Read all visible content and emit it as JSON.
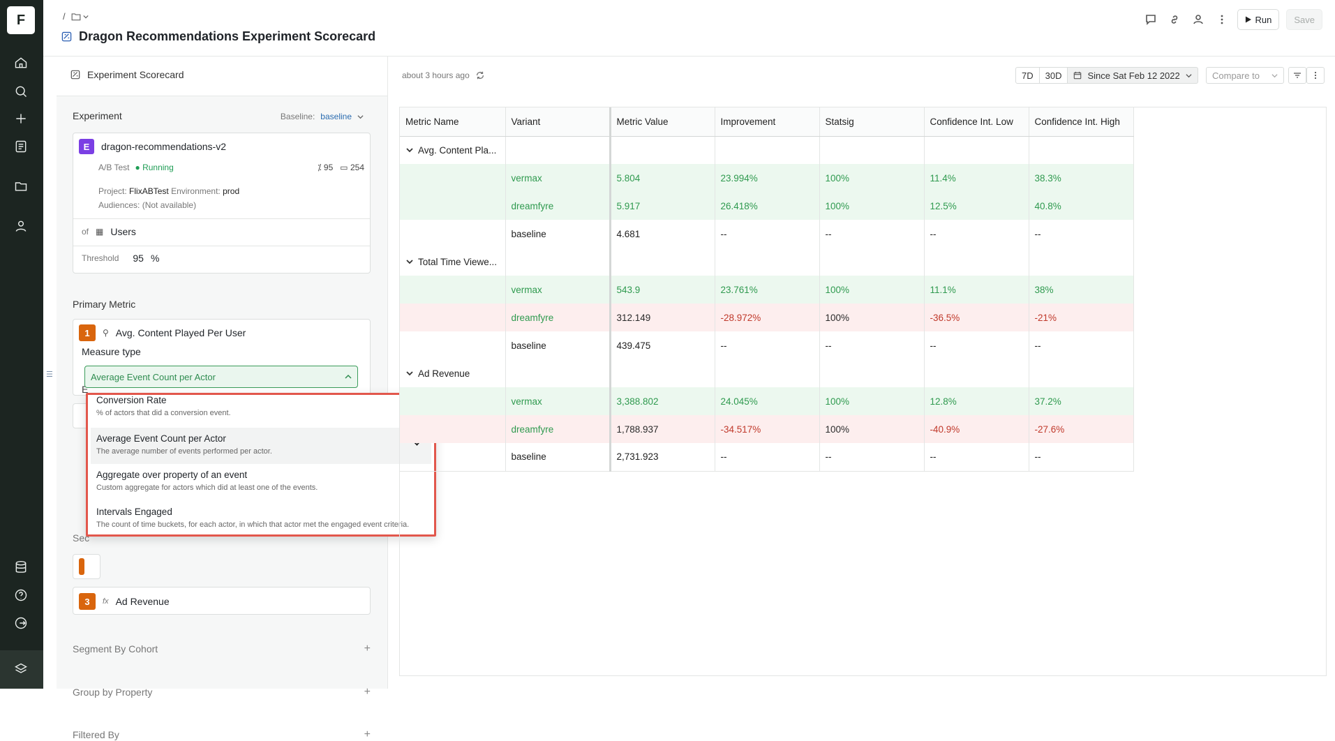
{
  "rail": {
    "logo": "F"
  },
  "breadcrumb": {
    "sep": "/"
  },
  "header": {
    "title": "Dragon Recommendations Experiment Scorecard",
    "run_label": "Run",
    "save_label": "Save"
  },
  "panel": {
    "tab_label": "Experiment Scorecard",
    "experiment": {
      "section_label": "Experiment",
      "baseline_label": "Baseline:",
      "baseline_value": "baseline",
      "badge": "E",
      "name": "dragon-recommendations-v2",
      "type": "A/B Test",
      "status": "Running",
      "stat_percent": "95",
      "stat_count": "254",
      "project_label": "Project:",
      "project": "FlixABTest",
      "env_label": "Environment:",
      "env": "prod",
      "audiences_label": "Audiences:",
      "audiences": "(Not available)",
      "of_label": "of",
      "actor": "Users",
      "threshold_label": "Threshold",
      "threshold_value": "95",
      "threshold_unit": "%"
    },
    "primary_metric": {
      "section_label": "Primary Metric",
      "num": "1",
      "name": "Avg. Content Played Per User",
      "measure_label": "Measure type",
      "measure_value": "Average Event Count per Actor",
      "obscured_label": "E"
    },
    "secondary": {
      "section_label": "Sec",
      "metric3_num": "3",
      "metric3_fx": "fx",
      "metric3_name": "Ad Revenue"
    },
    "segment_label": "Segment By Cohort",
    "group_label": "Group by Property",
    "filter_label": "Filtered By"
  },
  "measure_menu": [
    {
      "label": "Conversion Rate",
      "desc": "% of actors that did a conversion event."
    },
    {
      "label": "Average Event Count per Actor",
      "desc": "The average number of events performed per actor."
    },
    {
      "label": "Aggregate over property of an event",
      "desc": "Custom aggregate for actors which did at least one of the events."
    },
    {
      "label": "Intervals Engaged",
      "desc": "The count of time buckets, for each actor, in which that actor met the engaged event criteria."
    }
  ],
  "toolbar": {
    "updated": "about 3 hours ago",
    "range_7d": "7D",
    "range_30d": "30D",
    "range_since": "Since Sat Feb 12 2022",
    "compare": "Compare to"
  },
  "table": {
    "headers": [
      "Metric Name",
      "Variant",
      "Metric Value",
      "Improvement",
      "Statsig",
      "Confidence Int. Low",
      "Confidence Int. High"
    ],
    "groups": [
      {
        "name": "Avg. Content Pla...",
        "rows": [
          {
            "variant": "vermax",
            "value": "5.804",
            "improvement": "23.994%",
            "statsig": "100%",
            "low": "11.4%",
            "high": "38.3%"
          },
          {
            "variant": "dreamfyre",
            "value": "5.917",
            "improvement": "26.418%",
            "statsig": "100%",
            "low": "12.5%",
            "high": "40.8%"
          },
          {
            "variant": "baseline",
            "value": "4.681",
            "improvement": "--",
            "statsig": "--",
            "low": "--",
            "high": "--"
          }
        ]
      },
      {
        "name": "Total Time Viewe...",
        "rows": [
          {
            "variant": "vermax",
            "value": "543.9",
            "improvement": "23.761%",
            "statsig": "100%",
            "low": "11.1%",
            "high": "38%"
          },
          {
            "variant": "dreamfyre",
            "value": "312.149",
            "improvement": "-28.972%",
            "statsig": "100%",
            "low": "-36.5%",
            "high": "-21%"
          },
          {
            "variant": "baseline",
            "value": "439.475",
            "improvement": "--",
            "statsig": "--",
            "low": "--",
            "high": "--"
          }
        ]
      },
      {
        "name": "Ad Revenue",
        "rows": [
          {
            "variant": "vermax",
            "value": "3,388.802",
            "improvement": "24.045%",
            "statsig": "100%",
            "low": "12.8%",
            "high": "37.2%"
          },
          {
            "variant": "dreamfyre",
            "value": "1,788.937",
            "improvement": "-34.517%",
            "statsig": "100%",
            "low": "-40.9%",
            "high": "-27.6%"
          },
          {
            "variant": "baseline",
            "value": "2,731.923",
            "improvement": "--",
            "statsig": "--",
            "low": "--",
            "high": "--"
          }
        ]
      }
    ]
  },
  "colors": {
    "positive": "#2f9a4f",
    "negative": "#c0392b",
    "accent": "#d9650d",
    "experiment": "#7b3fe4"
  }
}
